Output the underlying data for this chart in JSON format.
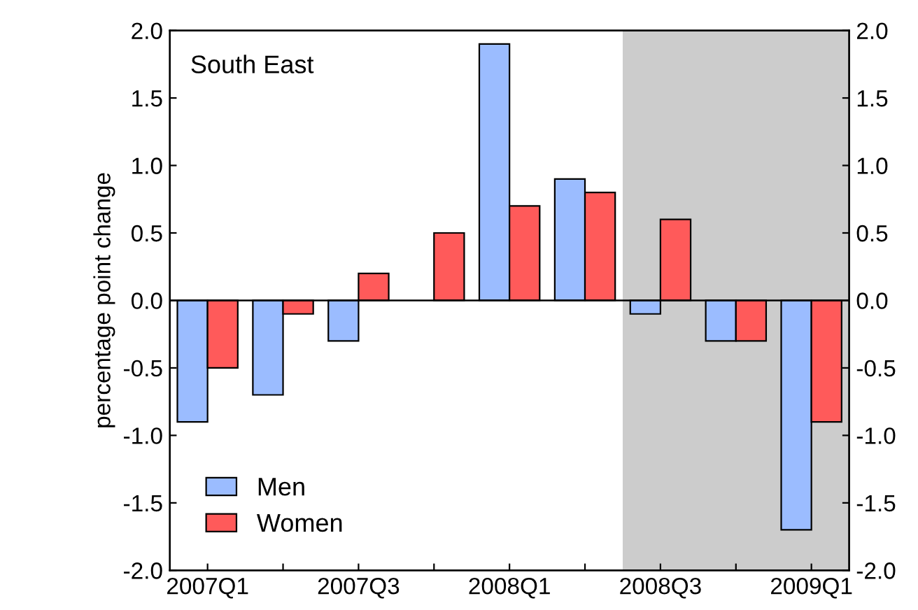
{
  "chart_data": {
    "type": "bar",
    "ylabel": "percentage point change",
    "categories": [
      "2007Q1",
      null,
      "2007Q3",
      null,
      "2008Q1",
      null,
      "2008Q3",
      null,
      "2009Q1"
    ],
    "series": [
      {
        "name": "Men",
        "color": "#9bbcff",
        "values": [
          -0.9,
          -0.7,
          -0.3,
          null,
          1.9,
          0.9,
          -0.1,
          -0.3,
          -1.7
        ]
      },
      {
        "name": "Women",
        "color": "#ff5a5a",
        "values": [
          -0.5,
          -0.1,
          0.2,
          0.5,
          0.7,
          0.8,
          0.6,
          -0.3,
          -0.9
        ]
      }
    ],
    "ylim": [
      -2.0,
      2.0
    ],
    "yticks": [
      {
        "value": -2,
        "label": "-2.0"
      },
      -1.5,
      {
        "value": -1,
        "label": "-1.0"
      },
      -0.5,
      {
        "value": 0,
        "label": "0.0"
      },
      0.5,
      {
        "value": 1,
        "label": "1.0"
      },
      1.5,
      {
        "value": 2,
        "label": "2.0"
      }
    ],
    "y2lim": [
      -2.0,
      2.0
    ],
    "y2ticks": [
      {
        "value": -2,
        "label": "-2.0"
      },
      -1.5,
      {
        "value": -1,
        "label": "-1.0"
      },
      -0.5,
      {
        "value": 0,
        "label": "0.0"
      },
      0.5,
      {
        "value": 1,
        "label": "1.0"
      },
      1.5,
      {
        "value": 2,
        "label": "2.0"
      }
    ],
    "annotations": [
      "South East"
    ],
    "bands": [
      {
        "axis": "x",
        "from": "2008Q3",
        "to": "2009Q1",
        "color": "#cccccc"
      }
    ],
    "ref_lines": [
      {
        "axis": "y",
        "value": 0.0,
        "color": "#000000"
      }
    ],
    "legend": "bottom left",
    "grid": false
  }
}
